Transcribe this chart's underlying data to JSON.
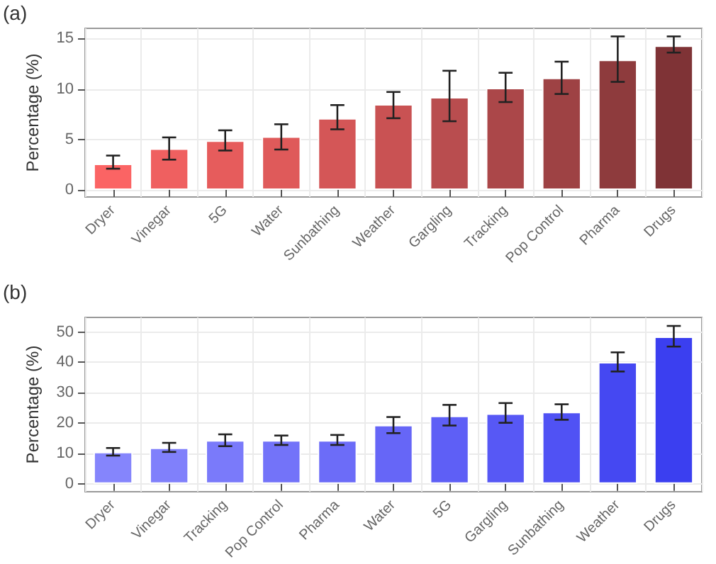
{
  "chart_data": [
    {
      "type": "bar",
      "title": "(a)",
      "ylabel": "Percentage (%)",
      "categories": [
        "Dryer",
        "Vinegar",
        "5G",
        "Water",
        "Sunbathing",
        "Weather",
        "Gargling",
        "Tracking",
        "Pop Control",
        "Pharma",
        "Drugs"
      ],
      "values": [
        2.6,
        4.1,
        4.9,
        5.3,
        7.1,
        8.5,
        9.2,
        10.1,
        11.1,
        12.9,
        14.3
      ],
      "errors": [
        [
          2.1,
          3.4
        ],
        [
          3.0,
          5.2
        ],
        [
          3.9,
          5.9
        ],
        [
          4.0,
          6.5
        ],
        [
          6.0,
          8.4
        ],
        [
          7.1,
          9.7
        ],
        [
          6.8,
          11.8
        ],
        [
          8.7,
          11.6
        ],
        [
          9.5,
          12.7
        ],
        [
          10.7,
          15.2
        ],
        [
          13.6,
          15.2
        ]
      ],
      "colors": [
        "#fb6464",
        "#ef6060",
        "#e65c5c",
        "#df5a5a",
        "#d45657",
        "#c95253",
        "#b94d4f",
        "#ab4749",
        "#9e4244",
        "#8e3b3d",
        "#7f3336"
      ],
      "ylim": [
        -0.7,
        16
      ],
      "yticks": [
        0,
        5,
        10,
        15
      ],
      "grid": true
    },
    {
      "type": "bar",
      "title": "(b)",
      "ylabel": "Percentage (%)",
      "categories": [
        "Dryer",
        "Vinegar",
        "Tracking",
        "Pop Control",
        "Pharma",
        "Water",
        "5G",
        "Gargling",
        "Sunbathing",
        "Weather",
        "Drugs"
      ],
      "values": [
        10.5,
        11.9,
        14.4,
        14.4,
        14.4,
        19.4,
        22.4,
        23.2,
        23.7,
        40.1,
        48.5
      ],
      "errors": [
        [
          9.3,
          11.8
        ],
        [
          10.5,
          13.5
        ],
        [
          12.4,
          16.3
        ],
        [
          12.8,
          15.9
        ],
        [
          12.8,
          16.1
        ],
        [
          16.7,
          22.0
        ],
        [
          19.2,
          26.0
        ],
        [
          20.1,
          26.6
        ],
        [
          21.1,
          26.2
        ],
        [
          37.0,
          43.3
        ],
        [
          45.2,
          52.0
        ]
      ],
      "colors": [
        "#8585fc",
        "#8080fb",
        "#7a7afa",
        "#7373f9",
        "#6c6cf8",
        "#6666f7",
        "#5e5ff6",
        "#5758f5",
        "#5052f4",
        "#4548f2",
        "#3b3ff0"
      ],
      "ylim": [
        -2.6,
        54.8
      ],
      "yticks": [
        0,
        10,
        20,
        30,
        40,
        50
      ],
      "grid": true
    }
  ]
}
